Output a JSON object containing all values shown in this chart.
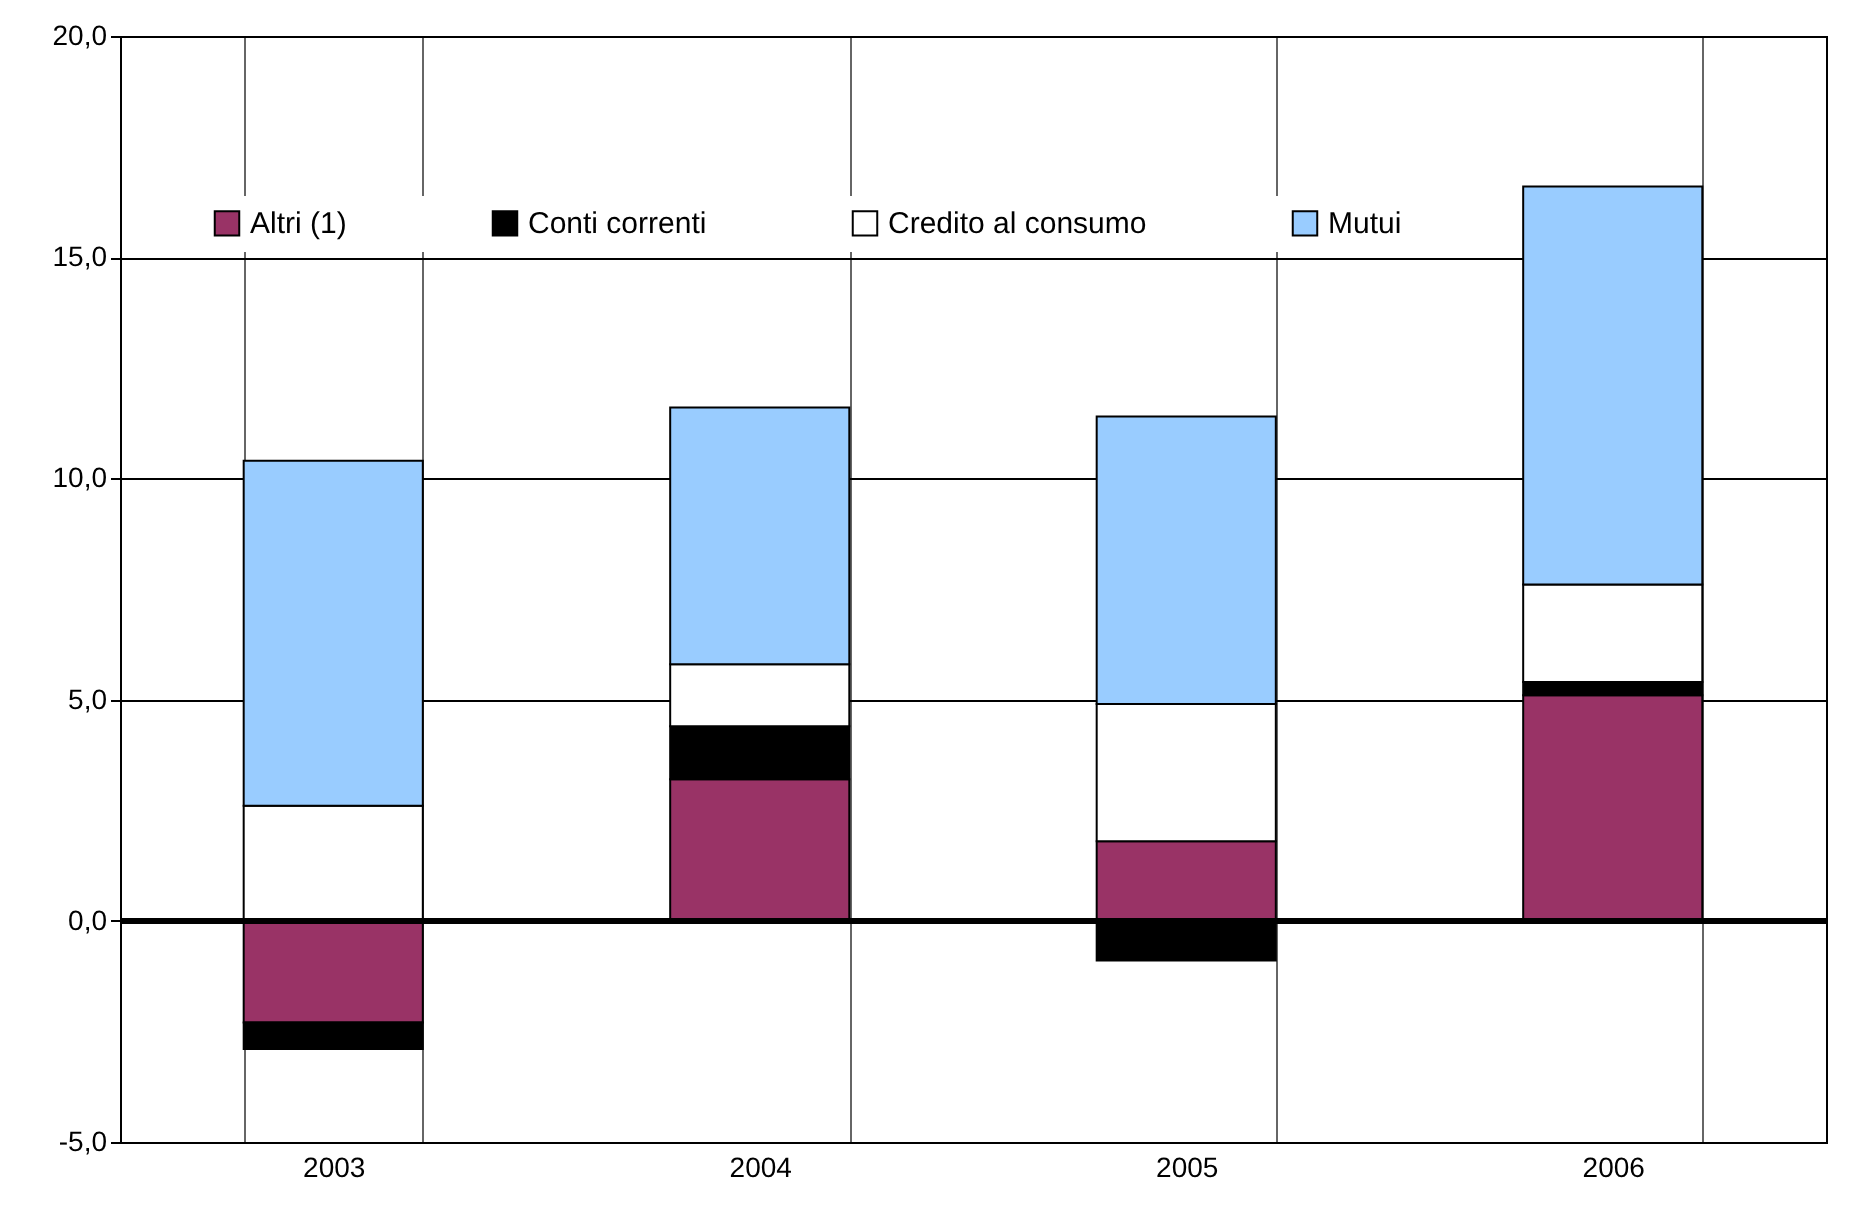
{
  "chart_data": {
    "type": "bar",
    "stacked": true,
    "categories": [
      "2003",
      "2004",
      "2005",
      "2006"
    ],
    "series": [
      {
        "name": "Altri (1)",
        "color": "#993366",
        "values": [
          -2.3,
          3.2,
          1.8,
          5.1
        ]
      },
      {
        "name": "Conti correnti",
        "color": "#000000",
        "values": [
          -0.6,
          1.2,
          -0.9,
          0.3
        ]
      },
      {
        "name": "Credito al consumo",
        "color": "#ffffff",
        "values": [
          2.6,
          1.4,
          3.1,
          2.2
        ]
      },
      {
        "name": "Mutui",
        "color": "#99ccff",
        "values": [
          7.8,
          5.8,
          6.5,
          9.0
        ]
      }
    ],
    "ylim": [
      -5,
      20
    ],
    "yticks": [
      {
        "value": -5,
        "label": "-5,0"
      },
      {
        "value": 0,
        "label": "0,0"
      },
      {
        "value": 5,
        "label": "5,0"
      },
      {
        "value": 10,
        "label": "10,0"
      },
      {
        "value": 15,
        "label": "15,0"
      },
      {
        "value": 20,
        "label": "20,0"
      }
    ],
    "grid": true,
    "legend": "top"
  }
}
